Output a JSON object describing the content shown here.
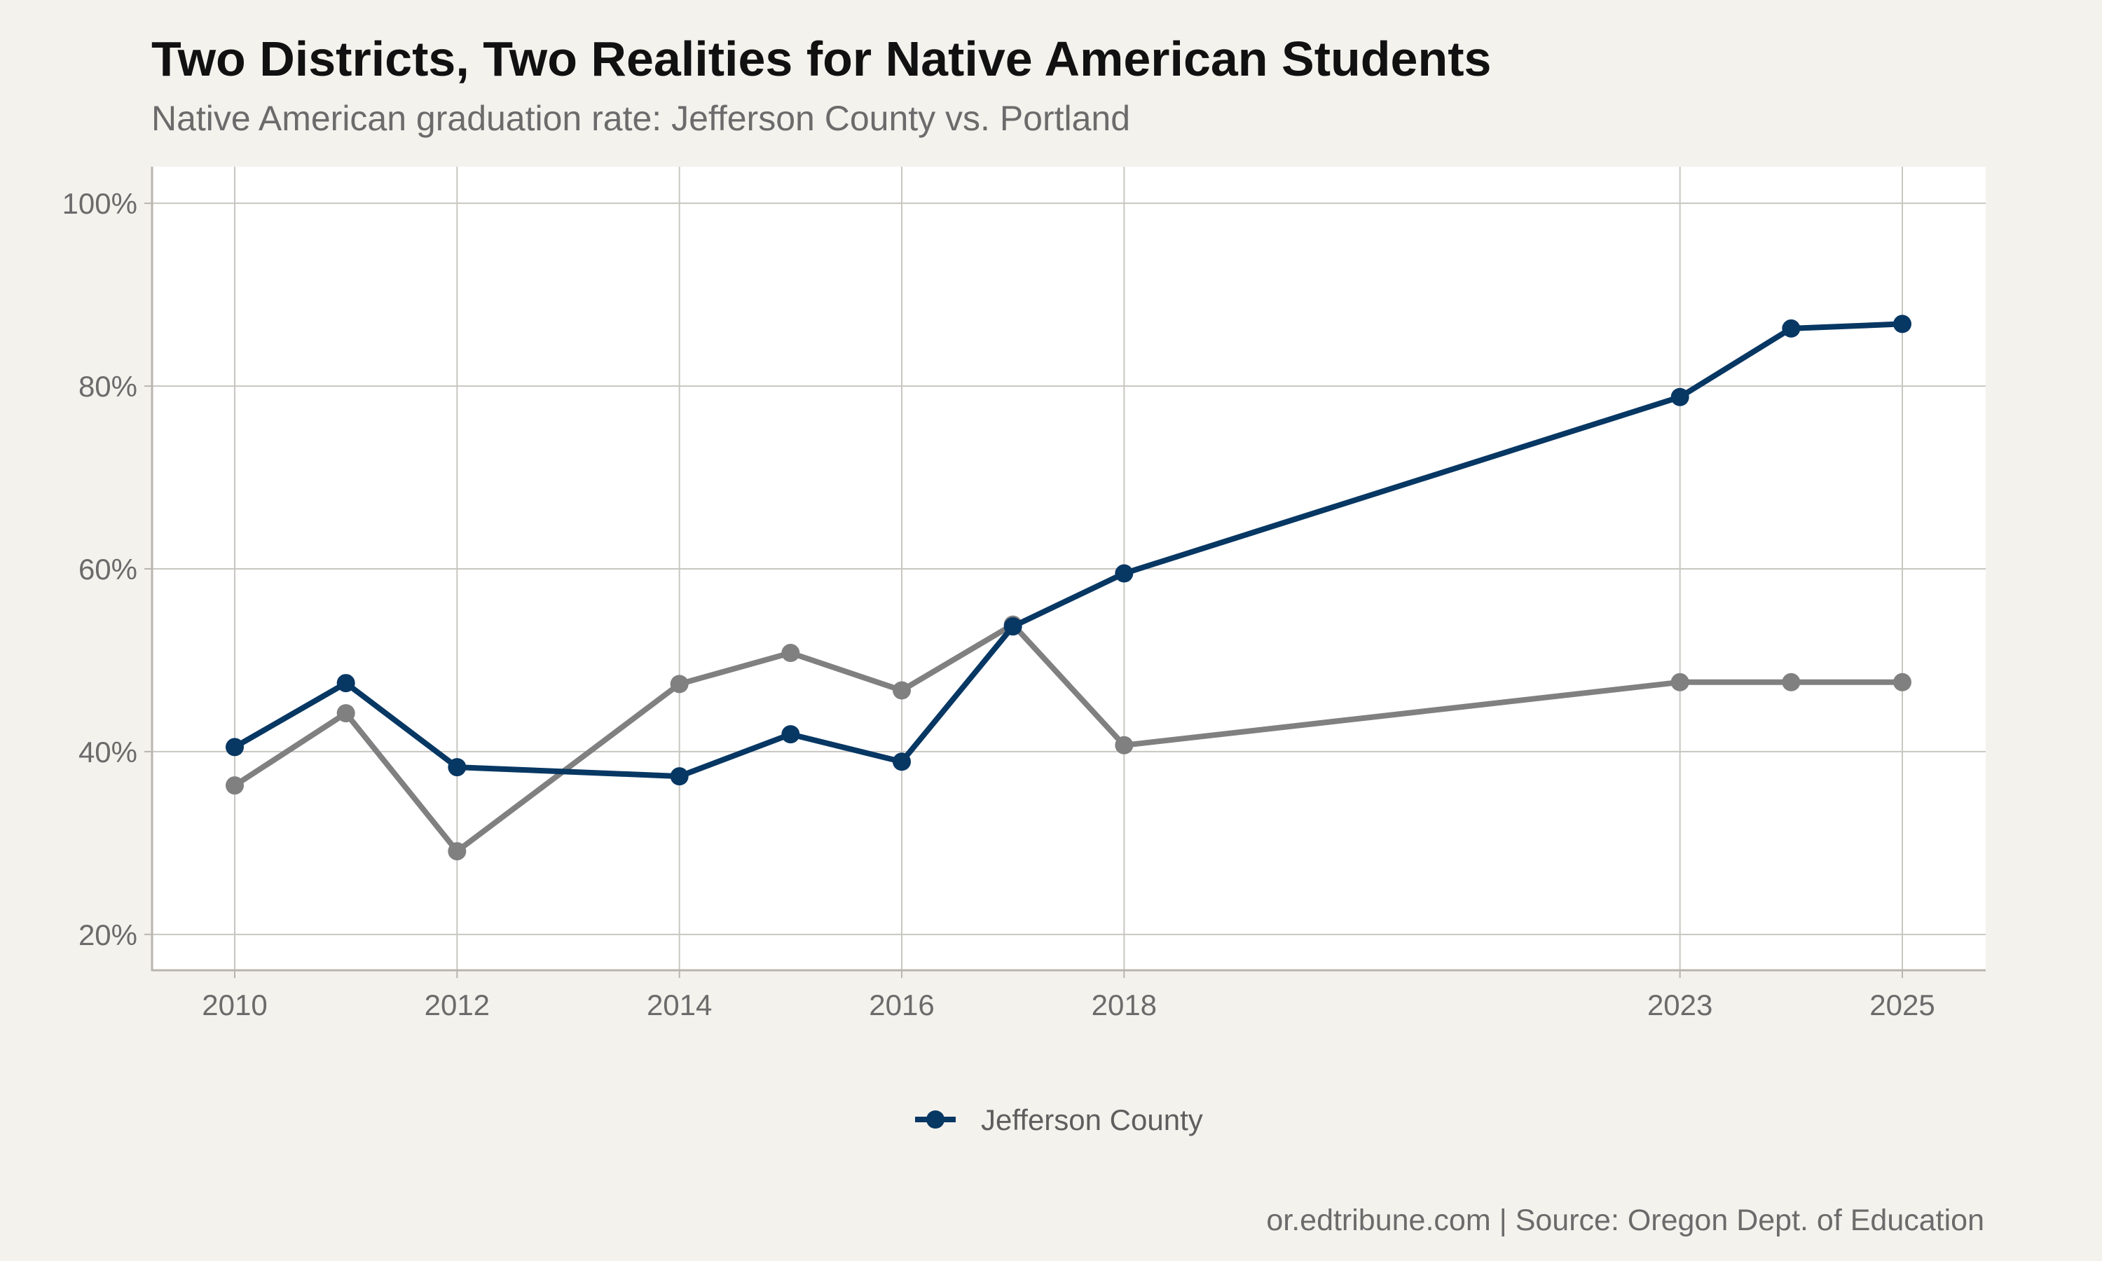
{
  "chart_data": {
    "type": "line",
    "title": "Two Districts, Two Realities for Native American Students",
    "subtitle": "Native American graduation rate: Jefferson County vs. Portland",
    "caption": "or.edtribune.com | Source: Oregon Dept. of Education",
    "xlabel": "",
    "ylabel": "",
    "x_ticks": [
      2010,
      2012,
      2014,
      2016,
      2018,
      2023,
      2025
    ],
    "x_tick_labels": [
      "2010",
      "2012",
      "2014",
      "2016",
      "2018",
      "2023",
      "2025"
    ],
    "xlim": [
      2009.25,
      2025.75
    ],
    "y_ticks": [
      20,
      40,
      60,
      80,
      100
    ],
    "y_tick_labels": [
      "20%",
      "40%",
      "60%",
      "80%",
      "100%"
    ],
    "ylim": [
      16,
      104
    ],
    "grid": true,
    "legend_position": "bottom",
    "series": [
      {
        "name": "Jefferson County",
        "color": "#073763",
        "in_legend": true,
        "points": [
          {
            "x": 2010,
            "y": 40.5
          },
          {
            "x": 2011,
            "y": 47.5
          },
          {
            "x": 2012,
            "y": 38.3
          },
          {
            "x": 2014,
            "y": 37.3
          },
          {
            "x": 2015,
            "y": 41.9
          },
          {
            "x": 2016,
            "y": 38.9
          },
          {
            "x": 2017,
            "y": 53.7
          },
          {
            "x": 2018,
            "y": 59.5
          },
          {
            "x": 2023,
            "y": 78.8
          },
          {
            "x": 2024,
            "y": 86.3
          },
          {
            "x": 2025,
            "y": 86.8
          }
        ]
      },
      {
        "color": "#808080",
        "in_legend": false,
        "points": [
          {
            "x": 2010,
            "y": 36.3
          },
          {
            "x": 2011,
            "y": 44.2
          },
          {
            "x": 2012,
            "y": 29.1
          },
          {
            "x": 2014,
            "y": 47.4
          },
          {
            "x": 2015,
            "y": 50.8
          },
          {
            "x": 2016,
            "y": 46.7
          },
          {
            "x": 2017,
            "y": 53.9
          },
          {
            "x": 2018,
            "y": 40.7
          },
          {
            "x": 2023,
            "y": 47.6
          },
          {
            "x": 2024,
            "y": 47.6
          },
          {
            "x": 2025,
            "y": 47.6
          }
        ]
      }
    ]
  }
}
